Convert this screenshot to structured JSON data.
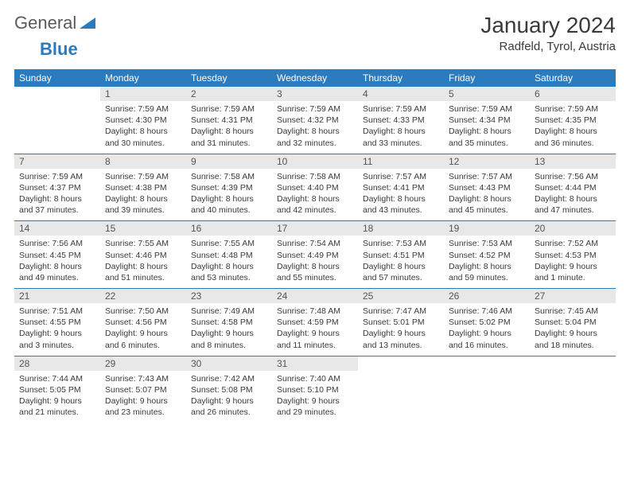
{
  "brand": {
    "word1": "General",
    "word2": "Blue"
  },
  "header": {
    "month": "January 2024",
    "location": "Radfeld, Tyrol, Austria"
  },
  "colors": {
    "header_bar": "#2b7bbf",
    "day_bg": "#e8e8e8",
    "text": "#3a3a3a",
    "rule": "#2b7bbf"
  },
  "weekdays": [
    "Sunday",
    "Monday",
    "Tuesday",
    "Wednesday",
    "Thursday",
    "Friday",
    "Saturday"
  ],
  "weeks": [
    [
      null,
      {
        "n": "1",
        "sr": "Sunrise: 7:59 AM",
        "ss": "Sunset: 4:30 PM",
        "d1": "Daylight: 8 hours",
        "d2": "and 30 minutes."
      },
      {
        "n": "2",
        "sr": "Sunrise: 7:59 AM",
        "ss": "Sunset: 4:31 PM",
        "d1": "Daylight: 8 hours",
        "d2": "and 31 minutes."
      },
      {
        "n": "3",
        "sr": "Sunrise: 7:59 AM",
        "ss": "Sunset: 4:32 PM",
        "d1": "Daylight: 8 hours",
        "d2": "and 32 minutes."
      },
      {
        "n": "4",
        "sr": "Sunrise: 7:59 AM",
        "ss": "Sunset: 4:33 PM",
        "d1": "Daylight: 8 hours",
        "d2": "and 33 minutes."
      },
      {
        "n": "5",
        "sr": "Sunrise: 7:59 AM",
        "ss": "Sunset: 4:34 PM",
        "d1": "Daylight: 8 hours",
        "d2": "and 35 minutes."
      },
      {
        "n": "6",
        "sr": "Sunrise: 7:59 AM",
        "ss": "Sunset: 4:35 PM",
        "d1": "Daylight: 8 hours",
        "d2": "and 36 minutes."
      }
    ],
    [
      {
        "n": "7",
        "sr": "Sunrise: 7:59 AM",
        "ss": "Sunset: 4:37 PM",
        "d1": "Daylight: 8 hours",
        "d2": "and 37 minutes."
      },
      {
        "n": "8",
        "sr": "Sunrise: 7:59 AM",
        "ss": "Sunset: 4:38 PM",
        "d1": "Daylight: 8 hours",
        "d2": "and 39 minutes."
      },
      {
        "n": "9",
        "sr": "Sunrise: 7:58 AM",
        "ss": "Sunset: 4:39 PM",
        "d1": "Daylight: 8 hours",
        "d2": "and 40 minutes."
      },
      {
        "n": "10",
        "sr": "Sunrise: 7:58 AM",
        "ss": "Sunset: 4:40 PM",
        "d1": "Daylight: 8 hours",
        "d2": "and 42 minutes."
      },
      {
        "n": "11",
        "sr": "Sunrise: 7:57 AM",
        "ss": "Sunset: 4:41 PM",
        "d1": "Daylight: 8 hours",
        "d2": "and 43 minutes."
      },
      {
        "n": "12",
        "sr": "Sunrise: 7:57 AM",
        "ss": "Sunset: 4:43 PM",
        "d1": "Daylight: 8 hours",
        "d2": "and 45 minutes."
      },
      {
        "n": "13",
        "sr": "Sunrise: 7:56 AM",
        "ss": "Sunset: 4:44 PM",
        "d1": "Daylight: 8 hours",
        "d2": "and 47 minutes."
      }
    ],
    [
      {
        "n": "14",
        "sr": "Sunrise: 7:56 AM",
        "ss": "Sunset: 4:45 PM",
        "d1": "Daylight: 8 hours",
        "d2": "and 49 minutes."
      },
      {
        "n": "15",
        "sr": "Sunrise: 7:55 AM",
        "ss": "Sunset: 4:46 PM",
        "d1": "Daylight: 8 hours",
        "d2": "and 51 minutes."
      },
      {
        "n": "16",
        "sr": "Sunrise: 7:55 AM",
        "ss": "Sunset: 4:48 PM",
        "d1": "Daylight: 8 hours",
        "d2": "and 53 minutes."
      },
      {
        "n": "17",
        "sr": "Sunrise: 7:54 AM",
        "ss": "Sunset: 4:49 PM",
        "d1": "Daylight: 8 hours",
        "d2": "and 55 minutes."
      },
      {
        "n": "18",
        "sr": "Sunrise: 7:53 AM",
        "ss": "Sunset: 4:51 PM",
        "d1": "Daylight: 8 hours",
        "d2": "and 57 minutes."
      },
      {
        "n": "19",
        "sr": "Sunrise: 7:53 AM",
        "ss": "Sunset: 4:52 PM",
        "d1": "Daylight: 8 hours",
        "d2": "and 59 minutes."
      },
      {
        "n": "20",
        "sr": "Sunrise: 7:52 AM",
        "ss": "Sunset: 4:53 PM",
        "d1": "Daylight: 9 hours",
        "d2": "and 1 minute."
      }
    ],
    [
      {
        "n": "21",
        "sr": "Sunrise: 7:51 AM",
        "ss": "Sunset: 4:55 PM",
        "d1": "Daylight: 9 hours",
        "d2": "and 3 minutes."
      },
      {
        "n": "22",
        "sr": "Sunrise: 7:50 AM",
        "ss": "Sunset: 4:56 PM",
        "d1": "Daylight: 9 hours",
        "d2": "and 6 minutes."
      },
      {
        "n": "23",
        "sr": "Sunrise: 7:49 AM",
        "ss": "Sunset: 4:58 PM",
        "d1": "Daylight: 9 hours",
        "d2": "and 8 minutes."
      },
      {
        "n": "24",
        "sr": "Sunrise: 7:48 AM",
        "ss": "Sunset: 4:59 PM",
        "d1": "Daylight: 9 hours",
        "d2": "and 11 minutes."
      },
      {
        "n": "25",
        "sr": "Sunrise: 7:47 AM",
        "ss": "Sunset: 5:01 PM",
        "d1": "Daylight: 9 hours",
        "d2": "and 13 minutes."
      },
      {
        "n": "26",
        "sr": "Sunrise: 7:46 AM",
        "ss": "Sunset: 5:02 PM",
        "d1": "Daylight: 9 hours",
        "d2": "and 16 minutes."
      },
      {
        "n": "27",
        "sr": "Sunrise: 7:45 AM",
        "ss": "Sunset: 5:04 PM",
        "d1": "Daylight: 9 hours",
        "d2": "and 18 minutes."
      }
    ],
    [
      {
        "n": "28",
        "sr": "Sunrise: 7:44 AM",
        "ss": "Sunset: 5:05 PM",
        "d1": "Daylight: 9 hours",
        "d2": "and 21 minutes."
      },
      {
        "n": "29",
        "sr": "Sunrise: 7:43 AM",
        "ss": "Sunset: 5:07 PM",
        "d1": "Daylight: 9 hours",
        "d2": "and 23 minutes."
      },
      {
        "n": "30",
        "sr": "Sunrise: 7:42 AM",
        "ss": "Sunset: 5:08 PM",
        "d1": "Daylight: 9 hours",
        "d2": "and 26 minutes."
      },
      {
        "n": "31",
        "sr": "Sunrise: 7:40 AM",
        "ss": "Sunset: 5:10 PM",
        "d1": "Daylight: 9 hours",
        "d2": "and 29 minutes."
      },
      null,
      null,
      null
    ]
  ]
}
